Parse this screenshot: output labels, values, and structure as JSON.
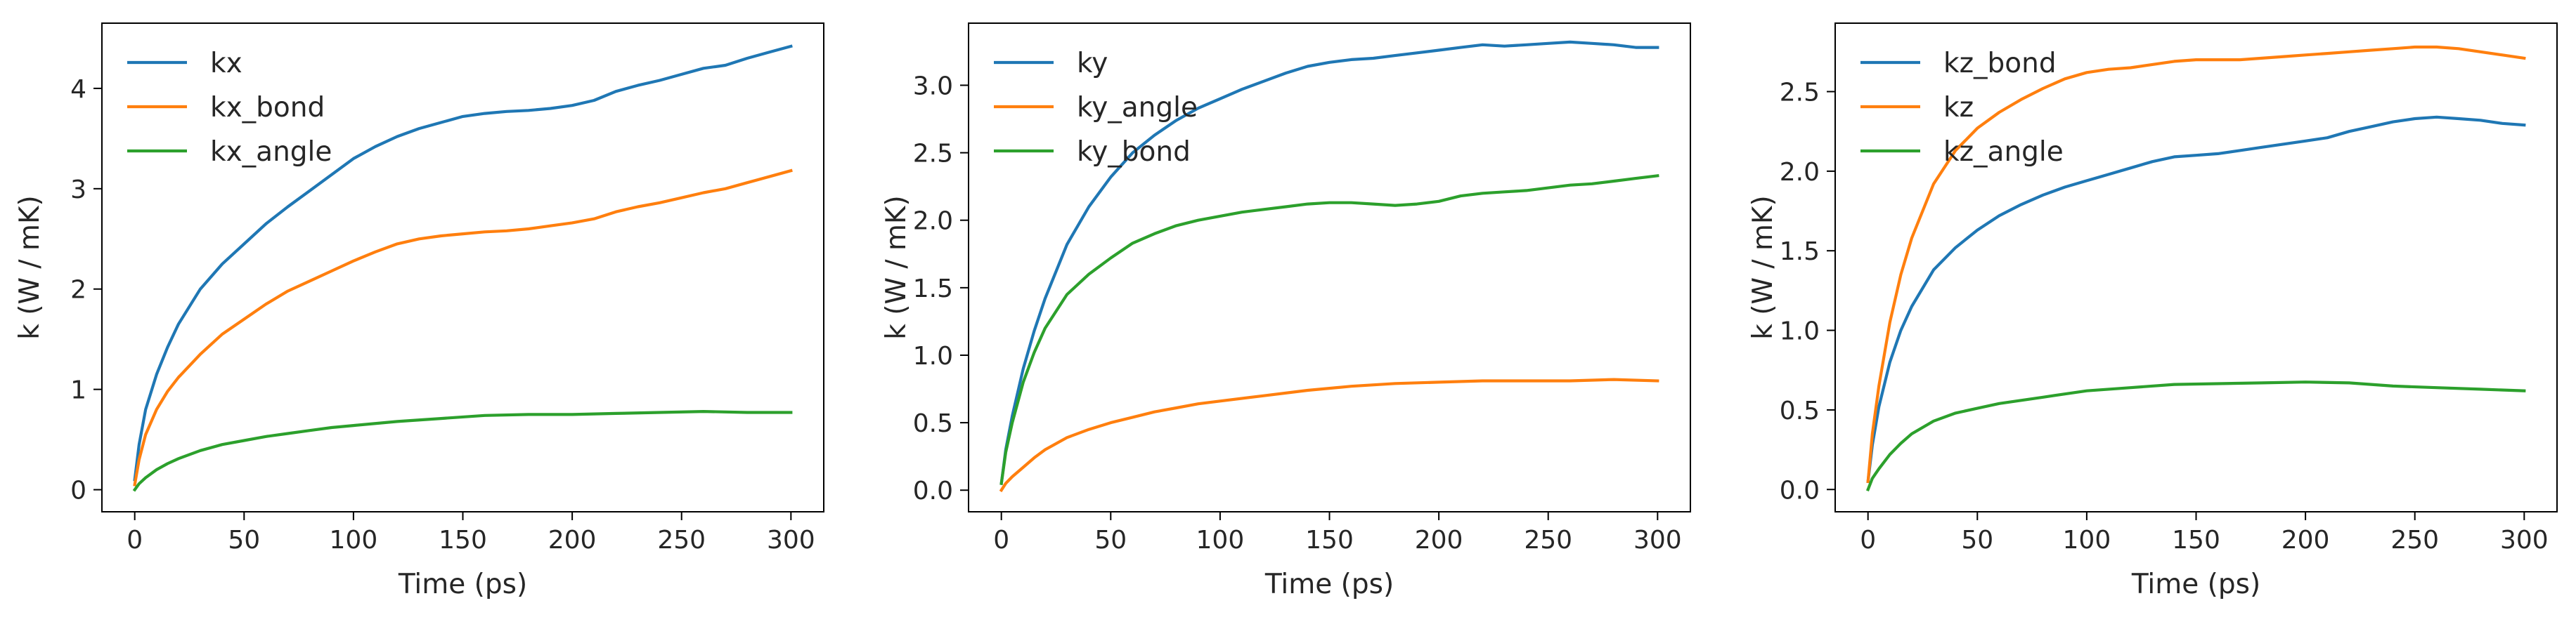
{
  "figure": {
    "background": "#ffffff"
  },
  "chart_data": [
    {
      "type": "line",
      "xlabel": "Time (ps)",
      "ylabel": "k (W / mK)",
      "xlim": [
        -15,
        315
      ],
      "ylim": [
        -0.22,
        4.65
      ],
      "xticks": [
        0,
        50,
        100,
        150,
        200,
        250,
        300
      ],
      "yticks": [
        0,
        1,
        2,
        3,
        4
      ],
      "ytick_labels": [
        "0",
        "1",
        "2",
        "3",
        "4"
      ],
      "legend_loc": "upper left",
      "series": [
        {
          "name": "kx",
          "color": "#1f77b4",
          "x": [
            0,
            2,
            5,
            10,
            15,
            20,
            30,
            40,
            50,
            60,
            70,
            80,
            90,
            100,
            110,
            120,
            130,
            140,
            150,
            160,
            170,
            180,
            190,
            200,
            210,
            220,
            230,
            240,
            250,
            260,
            270,
            280,
            290,
            300
          ],
          "y": [
            0.1,
            0.45,
            0.8,
            1.15,
            1.42,
            1.65,
            2.0,
            2.25,
            2.45,
            2.65,
            2.82,
            2.98,
            3.14,
            3.3,
            3.42,
            3.52,
            3.6,
            3.66,
            3.72,
            3.75,
            3.77,
            3.78,
            3.8,
            3.83,
            3.88,
            3.97,
            4.03,
            4.08,
            4.14,
            4.2,
            4.23,
            4.3,
            4.36,
            4.42
          ]
        },
        {
          "name": "kx_bond",
          "color": "#ff7f0e",
          "x": [
            0,
            2,
            5,
            10,
            15,
            20,
            30,
            40,
            50,
            60,
            70,
            80,
            90,
            100,
            110,
            120,
            130,
            140,
            150,
            160,
            170,
            180,
            190,
            200,
            210,
            220,
            230,
            240,
            250,
            260,
            270,
            280,
            290,
            300
          ],
          "y": [
            0.05,
            0.3,
            0.55,
            0.8,
            0.98,
            1.12,
            1.35,
            1.55,
            1.7,
            1.85,
            1.98,
            2.08,
            2.18,
            2.28,
            2.37,
            2.45,
            2.5,
            2.53,
            2.55,
            2.57,
            2.58,
            2.6,
            2.63,
            2.66,
            2.7,
            2.77,
            2.82,
            2.86,
            2.91,
            2.96,
            3.0,
            3.06,
            3.12,
            3.18
          ]
        },
        {
          "name": "kx_angle",
          "color": "#2ca02c",
          "x": [
            0,
            2,
            5,
            10,
            15,
            20,
            30,
            40,
            50,
            60,
            70,
            80,
            90,
            100,
            120,
            140,
            160,
            180,
            200,
            220,
            240,
            260,
            280,
            300
          ],
          "y": [
            0.0,
            0.06,
            0.12,
            0.2,
            0.26,
            0.31,
            0.39,
            0.45,
            0.49,
            0.53,
            0.56,
            0.59,
            0.62,
            0.64,
            0.68,
            0.71,
            0.74,
            0.75,
            0.75,
            0.76,
            0.77,
            0.78,
            0.77,
            0.77
          ]
        }
      ]
    },
    {
      "type": "line",
      "xlabel": "Time (ps)",
      "ylabel": "k (W / mK)",
      "xlim": [
        -15,
        315
      ],
      "ylim": [
        -0.16,
        3.46
      ],
      "xticks": [
        0,
        50,
        100,
        150,
        200,
        250,
        300
      ],
      "yticks": [
        0,
        0.5,
        1,
        1.5,
        2,
        2.5,
        3
      ],
      "ytick_labels": [
        "0.0",
        "0.5",
        "1.0",
        "1.5",
        "2.0",
        "2.5",
        "3.0"
      ],
      "legend_loc": "upper left",
      "series": [
        {
          "name": "ky",
          "color": "#1f77b4",
          "x": [
            0,
            2,
            5,
            10,
            15,
            20,
            30,
            40,
            50,
            60,
            70,
            80,
            90,
            100,
            110,
            120,
            130,
            140,
            150,
            160,
            170,
            180,
            190,
            200,
            210,
            220,
            230,
            240,
            250,
            260,
            270,
            280,
            290,
            300
          ],
          "y": [
            0.05,
            0.3,
            0.55,
            0.9,
            1.18,
            1.42,
            1.82,
            2.1,
            2.32,
            2.5,
            2.63,
            2.74,
            2.83,
            2.9,
            2.97,
            3.03,
            3.09,
            3.14,
            3.17,
            3.19,
            3.2,
            3.22,
            3.24,
            3.26,
            3.28,
            3.3,
            3.29,
            3.3,
            3.31,
            3.32,
            3.31,
            3.3,
            3.28,
            3.28
          ]
        },
        {
          "name": "ky_angle",
          "color": "#ff7f0e",
          "x": [
            0,
            2,
            5,
            10,
            15,
            20,
            30,
            40,
            50,
            60,
            70,
            80,
            90,
            100,
            120,
            140,
            160,
            180,
            200,
            220,
            240,
            260,
            280,
            300
          ],
          "y": [
            0.0,
            0.05,
            0.1,
            0.17,
            0.24,
            0.3,
            0.39,
            0.45,
            0.5,
            0.54,
            0.58,
            0.61,
            0.64,
            0.66,
            0.7,
            0.74,
            0.77,
            0.79,
            0.8,
            0.81,
            0.81,
            0.81,
            0.82,
            0.81
          ]
        },
        {
          "name": "ky_bond",
          "color": "#2ca02c",
          "x": [
            0,
            2,
            5,
            10,
            15,
            20,
            30,
            40,
            50,
            60,
            70,
            80,
            90,
            100,
            110,
            120,
            130,
            140,
            150,
            160,
            170,
            180,
            190,
            200,
            210,
            220,
            230,
            240,
            250,
            260,
            270,
            280,
            290,
            300
          ],
          "y": [
            0.05,
            0.28,
            0.5,
            0.8,
            1.02,
            1.2,
            1.45,
            1.6,
            1.72,
            1.83,
            1.9,
            1.96,
            2.0,
            2.03,
            2.06,
            2.08,
            2.1,
            2.12,
            2.13,
            2.13,
            2.12,
            2.11,
            2.12,
            2.14,
            2.18,
            2.2,
            2.21,
            2.22,
            2.24,
            2.26,
            2.27,
            2.29,
            2.31,
            2.33
          ]
        }
      ]
    },
    {
      "type": "line",
      "xlabel": "Time (ps)",
      "ylabel": "k (W / mK)",
      "xlim": [
        -15,
        315
      ],
      "ylim": [
        -0.14,
        2.93
      ],
      "xticks": [
        0,
        50,
        100,
        150,
        200,
        250,
        300
      ],
      "yticks": [
        0,
        0.5,
        1,
        1.5,
        2,
        2.5
      ],
      "ytick_labels": [
        "0.0",
        "0.5",
        "1.0",
        "1.5",
        "2.0",
        "2.5"
      ],
      "legend_loc": "upper left",
      "series": [
        {
          "name": "kz_bond",
          "color": "#1f77b4",
          "x": [
            0,
            2,
            5,
            10,
            15,
            20,
            30,
            40,
            50,
            60,
            70,
            80,
            90,
            100,
            110,
            120,
            130,
            140,
            150,
            160,
            170,
            180,
            190,
            200,
            210,
            220,
            230,
            240,
            250,
            260,
            270,
            280,
            290,
            300
          ],
          "y": [
            0.05,
            0.28,
            0.52,
            0.8,
            1.0,
            1.15,
            1.38,
            1.52,
            1.63,
            1.72,
            1.79,
            1.85,
            1.9,
            1.94,
            1.98,
            2.02,
            2.06,
            2.09,
            2.1,
            2.11,
            2.13,
            2.15,
            2.17,
            2.19,
            2.21,
            2.25,
            2.28,
            2.31,
            2.33,
            2.34,
            2.33,
            2.32,
            2.3,
            2.29
          ]
        },
        {
          "name": "kz",
          "color": "#ff7f0e",
          "x": [
            0,
            2,
            5,
            10,
            15,
            20,
            30,
            40,
            50,
            60,
            70,
            80,
            90,
            100,
            110,
            120,
            130,
            140,
            150,
            160,
            170,
            180,
            190,
            200,
            210,
            220,
            230,
            240,
            250,
            260,
            270,
            280,
            290,
            300
          ],
          "y": [
            0.05,
            0.35,
            0.65,
            1.05,
            1.35,
            1.58,
            1.92,
            2.13,
            2.27,
            2.37,
            2.45,
            2.52,
            2.58,
            2.62,
            2.64,
            2.65,
            2.67,
            2.69,
            2.7,
            2.7,
            2.7,
            2.71,
            2.72,
            2.73,
            2.74,
            2.75,
            2.76,
            2.77,
            2.78,
            2.78,
            2.77,
            2.75,
            2.73,
            2.71
          ]
        },
        {
          "name": "kz_angle",
          "color": "#2ca02c",
          "x": [
            0,
            2,
            5,
            10,
            15,
            20,
            30,
            40,
            50,
            60,
            70,
            80,
            90,
            100,
            120,
            140,
            160,
            180,
            200,
            220,
            240,
            260,
            280,
            300
          ],
          "y": [
            0.0,
            0.07,
            0.13,
            0.22,
            0.29,
            0.35,
            0.43,
            0.48,
            0.51,
            0.54,
            0.56,
            0.58,
            0.6,
            0.62,
            0.64,
            0.66,
            0.665,
            0.67,
            0.675,
            0.67,
            0.65,
            0.64,
            0.63,
            0.62
          ]
        }
      ]
    }
  ]
}
